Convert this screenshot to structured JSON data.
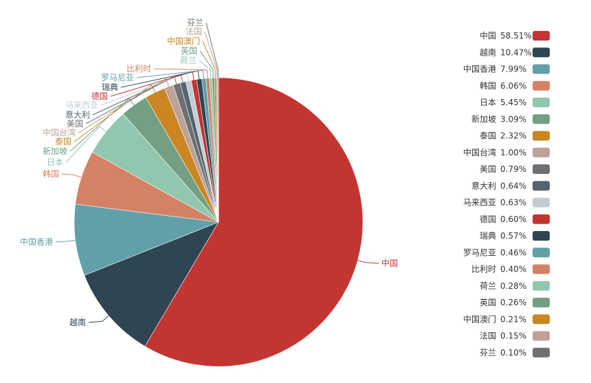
{
  "chart_data": {
    "type": "pie",
    "title": "",
    "legend_position": "right",
    "slices": [
      {
        "name": "中国",
        "value": 58.51,
        "value_label": "58.51%",
        "color": "#c23531"
      },
      {
        "name": "越南",
        "value": 10.47,
        "value_label": "10.47%",
        "color": "#2f4554"
      },
      {
        "name": "中国香港",
        "value": 7.99,
        "value_label": "7.99%",
        "color": "#61a0a8"
      },
      {
        "name": "韩国",
        "value": 6.06,
        "value_label": "6.06%",
        "color": "#d48265"
      },
      {
        "name": "日本",
        "value": 5.45,
        "value_label": "5.45%",
        "color": "#91c7ae"
      },
      {
        "name": "新加坡",
        "value": 3.09,
        "value_label": "3.09%",
        "color": "#749f83"
      },
      {
        "name": "泰国",
        "value": 2.32,
        "value_label": "2.32%",
        "color": "#ca8622"
      },
      {
        "name": "中国台湾",
        "value": 1.0,
        "value_label": "1.00%",
        "color": "#bda29a"
      },
      {
        "name": "美国",
        "value": 0.79,
        "value_label": "0.79%",
        "color": "#6e7074"
      },
      {
        "name": "意大利",
        "value": 0.64,
        "value_label": "0.64%",
        "color": "#546570"
      },
      {
        "name": "马来西亚",
        "value": 0.63,
        "value_label": "0.63%",
        "color": "#c4ccd3"
      },
      {
        "name": "德国",
        "value": 0.6,
        "value_label": "0.60%",
        "color": "#c23531"
      },
      {
        "name": "瑞典",
        "value": 0.57,
        "value_label": "0.57%",
        "color": "#2f4554"
      },
      {
        "name": "罗马尼亚",
        "value": 0.46,
        "value_label": "0.46%",
        "color": "#61a0a8"
      },
      {
        "name": "比利时",
        "value": 0.4,
        "value_label": "0.40%",
        "color": "#d48265"
      },
      {
        "name": "荷兰",
        "value": 0.28,
        "value_label": "0.28%",
        "color": "#91c7ae"
      },
      {
        "name": "英国",
        "value": 0.26,
        "value_label": "0.26%",
        "color": "#749f83"
      },
      {
        "name": "中国澳门",
        "value": 0.21,
        "value_label": "0.21%",
        "color": "#ca8622"
      },
      {
        "name": "法国",
        "value": 0.15,
        "value_label": "0.15%",
        "color": "#bda29a"
      },
      {
        "name": "芬兰",
        "value": 0.1,
        "value_label": "0.10%",
        "color": "#6e7074"
      }
    ]
  }
}
